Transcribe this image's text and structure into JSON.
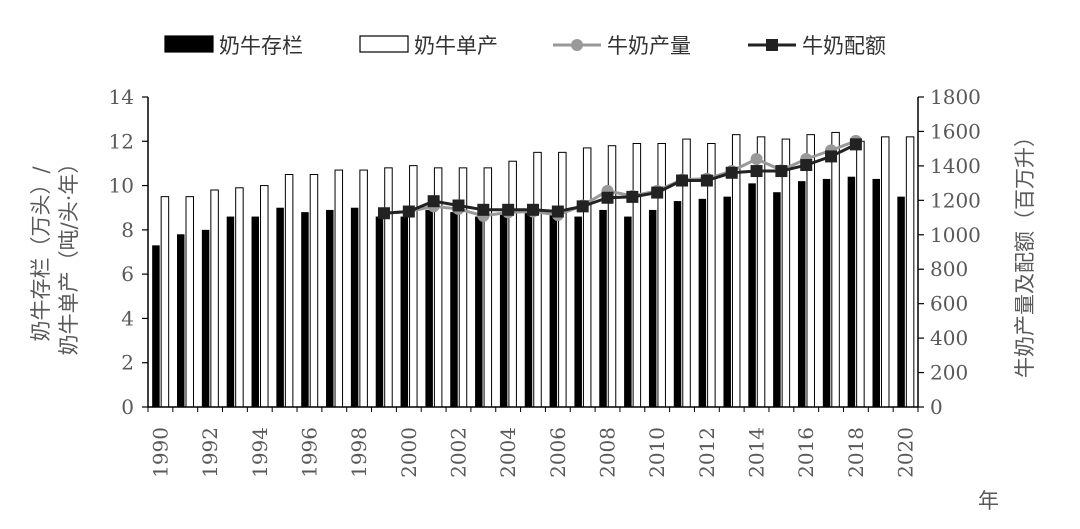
{
  "chart_data": {
    "type": "bar",
    "x_label": "年",
    "y_left_label_lines": [
      "奶牛存栏（万头）/",
      "奶牛单产（吨/头·年）"
    ],
    "y_right_label": "牛奶产量及配额（百万升）",
    "y_left_range": [
      0,
      14
    ],
    "y_left_ticks": [
      "0",
      "2",
      "4",
      "6",
      "8",
      "10",
      "12",
      "14"
    ],
    "y_right_range": [
      0,
      1800
    ],
    "y_right_ticks": [
      "0",
      "200",
      "400",
      "600",
      "800",
      "1000",
      "1200",
      "1400",
      "1600",
      "1800"
    ],
    "x_tick_labels": [
      "1990",
      "1992",
      "1994",
      "1996",
      "1998",
      "2000",
      "2002",
      "2004",
      "2006",
      "2008",
      "2010",
      "2012",
      "2014",
      "2016",
      "2018",
      "2020"
    ],
    "years": [
      1990,
      1991,
      1992,
      1993,
      1994,
      1995,
      1996,
      1997,
      1998,
      1999,
      2000,
      2001,
      2002,
      2003,
      2004,
      2005,
      2006,
      2007,
      2008,
      2009,
      2010,
      2011,
      2012,
      2013,
      2014,
      2015,
      2016,
      2017,
      2018,
      2019,
      2020
    ],
    "legend_placement": "top",
    "grid": false,
    "series": [
      {
        "name": "奶牛存栏",
        "kind": "bar",
        "axis": "left",
        "color": "#000000",
        "values": [
          7.3,
          7.8,
          8.0,
          8.6,
          8.6,
          9.0,
          8.8,
          8.9,
          9.0,
          8.6,
          8.6,
          8.9,
          8.8,
          8.6,
          8.8,
          8.8,
          8.7,
          8.6,
          8.9,
          8.6,
          8.9,
          9.3,
          9.4,
          9.5,
          10.1,
          9.7,
          10.2,
          10.3,
          10.4,
          10.3,
          9.5
        ]
      },
      {
        "name": "奶牛单产",
        "kind": "bar",
        "axis": "left",
        "color": "#ffffff",
        "values": [
          9.5,
          9.5,
          9.8,
          9.9,
          10.0,
          10.5,
          10.5,
          10.7,
          10.7,
          10.8,
          10.9,
          10.8,
          10.8,
          10.8,
          11.1,
          11.5,
          11.5,
          11.7,
          11.8,
          11.9,
          11.9,
          12.1,
          11.9,
          12.3,
          12.2,
          12.1,
          12.3,
          12.4,
          12.0,
          12.2,
          12.2
        ]
      },
      {
        "name": "牛奶产量",
        "kind": "line",
        "axis": "right",
        "color": "#999999",
        "marker": "circle",
        "x": [
          1999,
          2000,
          2001,
          2002,
          2003,
          2004,
          2005,
          2006,
          2007,
          2008,
          2009,
          2010,
          2011,
          2012,
          2013,
          2014,
          2015,
          2016,
          2017,
          2018
        ],
        "values": [
          1125,
          1135,
          1165,
          1150,
          1110,
          1130,
          1135,
          1115,
          1170,
          1255,
          1225,
          1255,
          1320,
          1325,
          1370,
          1440,
          1375,
          1440,
          1490,
          1545
        ]
      },
      {
        "name": "牛奶配额",
        "kind": "line",
        "axis": "right",
        "color": "#222222",
        "marker": "square",
        "x": [
          1999,
          2000,
          2001,
          2002,
          2003,
          2004,
          2005,
          2006,
          2007,
          2008,
          2009,
          2010,
          2011,
          2012,
          2013,
          2014,
          2015,
          2016,
          2017,
          2018
        ],
        "values": [
          1125,
          1135,
          1195,
          1170,
          1145,
          1145,
          1145,
          1135,
          1165,
          1215,
          1220,
          1245,
          1315,
          1315,
          1360,
          1370,
          1370,
          1405,
          1455,
          1525
        ]
      }
    ]
  }
}
